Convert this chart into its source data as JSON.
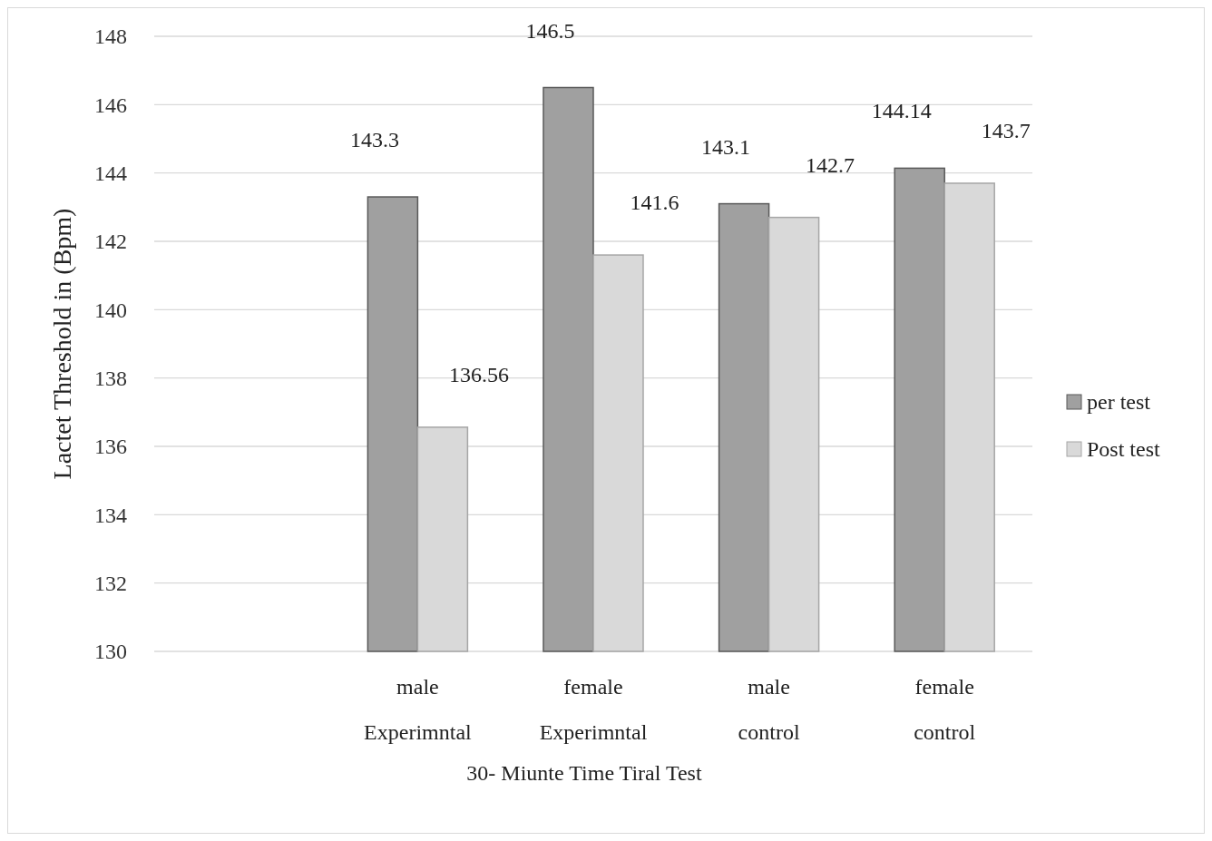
{
  "chart_data": {
    "type": "bar",
    "xlabel": "30- Miunte Time Tiral  Test",
    "ylabel": "Lactet  Threshold in (Bpm)",
    "categories": [
      null,
      "male Experimntal",
      "female Experimntal",
      "male control",
      "female control"
    ],
    "series": [
      {
        "name": "per test",
        "color": "#a0a0a0",
        "values": [
          null,
          143.3,
          146.5,
          143.1,
          144.14
        ]
      },
      {
        "name": "Post test",
        "color": "#d9d9d9",
        "values": [
          null,
          136.56,
          141.6,
          142.7,
          143.7
        ]
      }
    ],
    "ylim": [
      130,
      148
    ],
    "yticks": [
      130,
      132,
      134,
      136,
      138,
      140,
      142,
      144,
      146,
      148
    ],
    "grid": "y",
    "legend": "right",
    "data_labels": true
  }
}
